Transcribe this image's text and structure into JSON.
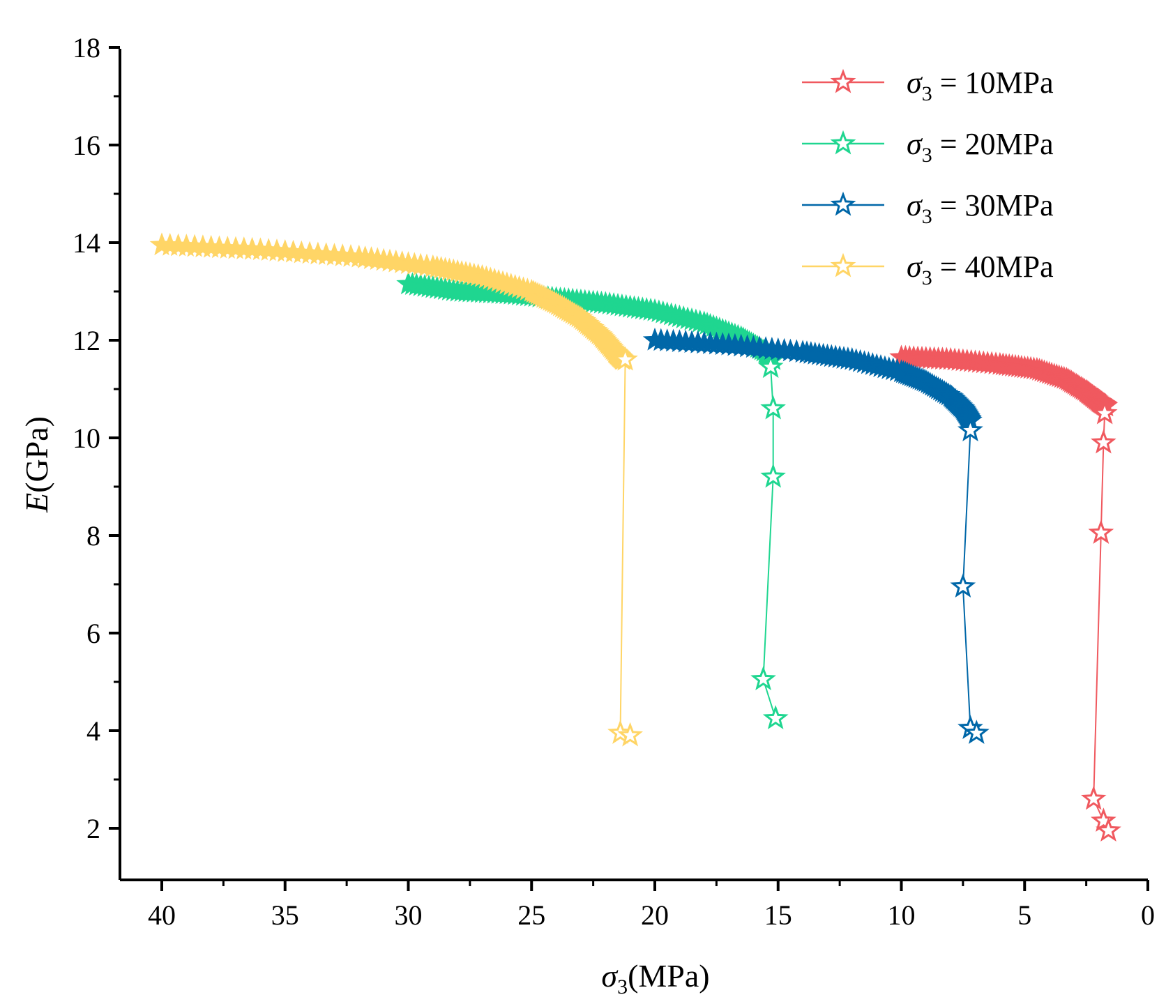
{
  "chart_data": {
    "type": "line",
    "xlabel": "σ3(MPa)",
    "ylabel": "E(GPa)",
    "x_reversed": true,
    "xlim": [
      42,
      0
    ],
    "ylim": [
      1,
      18
    ],
    "xticks": [
      40,
      35,
      30,
      25,
      20,
      15,
      10,
      5,
      0
    ],
    "yticks": [
      2,
      4,
      6,
      8,
      10,
      12,
      14,
      16,
      18
    ],
    "legend_position": "top-right",
    "series": [
      {
        "name": "σ3 = 10MPa",
        "legend_symbol": "σ",
        "legend_sub": "3",
        "legend_text": " = 10MPa",
        "color": "#f0595f",
        "band_points": [
          [
            10,
            11.65
          ],
          [
            8,
            11.6
          ],
          [
            6,
            11.5
          ],
          [
            4.5,
            11.4
          ],
          [
            3.3,
            11.2
          ],
          [
            2.5,
            10.95
          ],
          [
            2,
            10.75
          ],
          [
            1.7,
            10.65
          ]
        ],
        "star_points": [
          [
            1.75,
            10.5
          ],
          [
            1.8,
            9.9
          ],
          [
            1.9,
            8.05
          ],
          [
            2.2,
            2.6
          ],
          [
            1.8,
            2.15
          ],
          [
            1.6,
            1.95
          ]
        ]
      },
      {
        "name": "σ3 = 20MPa",
        "legend_symbol": "σ",
        "legend_sub": "3",
        "legend_text": " = 20MPa",
        "color": "#1fd690",
        "band_points": [
          [
            30,
            13.15
          ],
          [
            28,
            13.0
          ],
          [
            26,
            12.95
          ],
          [
            24,
            12.85
          ],
          [
            22,
            12.75
          ],
          [
            20,
            12.6
          ],
          [
            18,
            12.35
          ],
          [
            16.5,
            12.05
          ],
          [
            15.5,
            11.75
          ],
          [
            15.2,
            11.6
          ]
        ],
        "star_points": [
          [
            15.3,
            11.45
          ],
          [
            15.2,
            10.6
          ],
          [
            15.2,
            9.2
          ],
          [
            15.6,
            5.05
          ],
          [
            15.1,
            4.25
          ]
        ]
      },
      {
        "name": "σ3 = 30MPa",
        "legend_symbol": "σ",
        "legend_sub": "3",
        "legend_text": " = 30MPa",
        "color": "#0067a8",
        "band_points": [
          [
            20,
            12.0
          ],
          [
            17,
            11.9
          ],
          [
            14,
            11.75
          ],
          [
            12,
            11.6
          ],
          [
            10,
            11.35
          ],
          [
            9,
            11.15
          ],
          [
            8,
            10.85
          ],
          [
            7.5,
            10.6
          ],
          [
            7.2,
            10.35
          ]
        ],
        "star_points": [
          [
            7.2,
            10.15
          ],
          [
            7.5,
            6.95
          ],
          [
            7.2,
            4.05
          ],
          [
            6.95,
            3.95
          ]
        ]
      },
      {
        "name": "σ3 = 40MPa",
        "legend_symbol": "σ",
        "legend_sub": "3",
        "legend_text": " = 40MPa",
        "color": "#ffd566",
        "band_points": [
          [
            40,
            13.95
          ],
          [
            36,
            13.85
          ],
          [
            32,
            13.7
          ],
          [
            29,
            13.5
          ],
          [
            27,
            13.3
          ],
          [
            25,
            13.0
          ],
          [
            24,
            12.75
          ],
          [
            23,
            12.45
          ],
          [
            22.2,
            12.1
          ],
          [
            21.6,
            11.75
          ],
          [
            21.3,
            11.6
          ]
        ],
        "star_points": [
          [
            21.2,
            11.6
          ],
          [
            21.4,
            3.95
          ],
          [
            21.0,
            3.9
          ]
        ]
      }
    ]
  }
}
